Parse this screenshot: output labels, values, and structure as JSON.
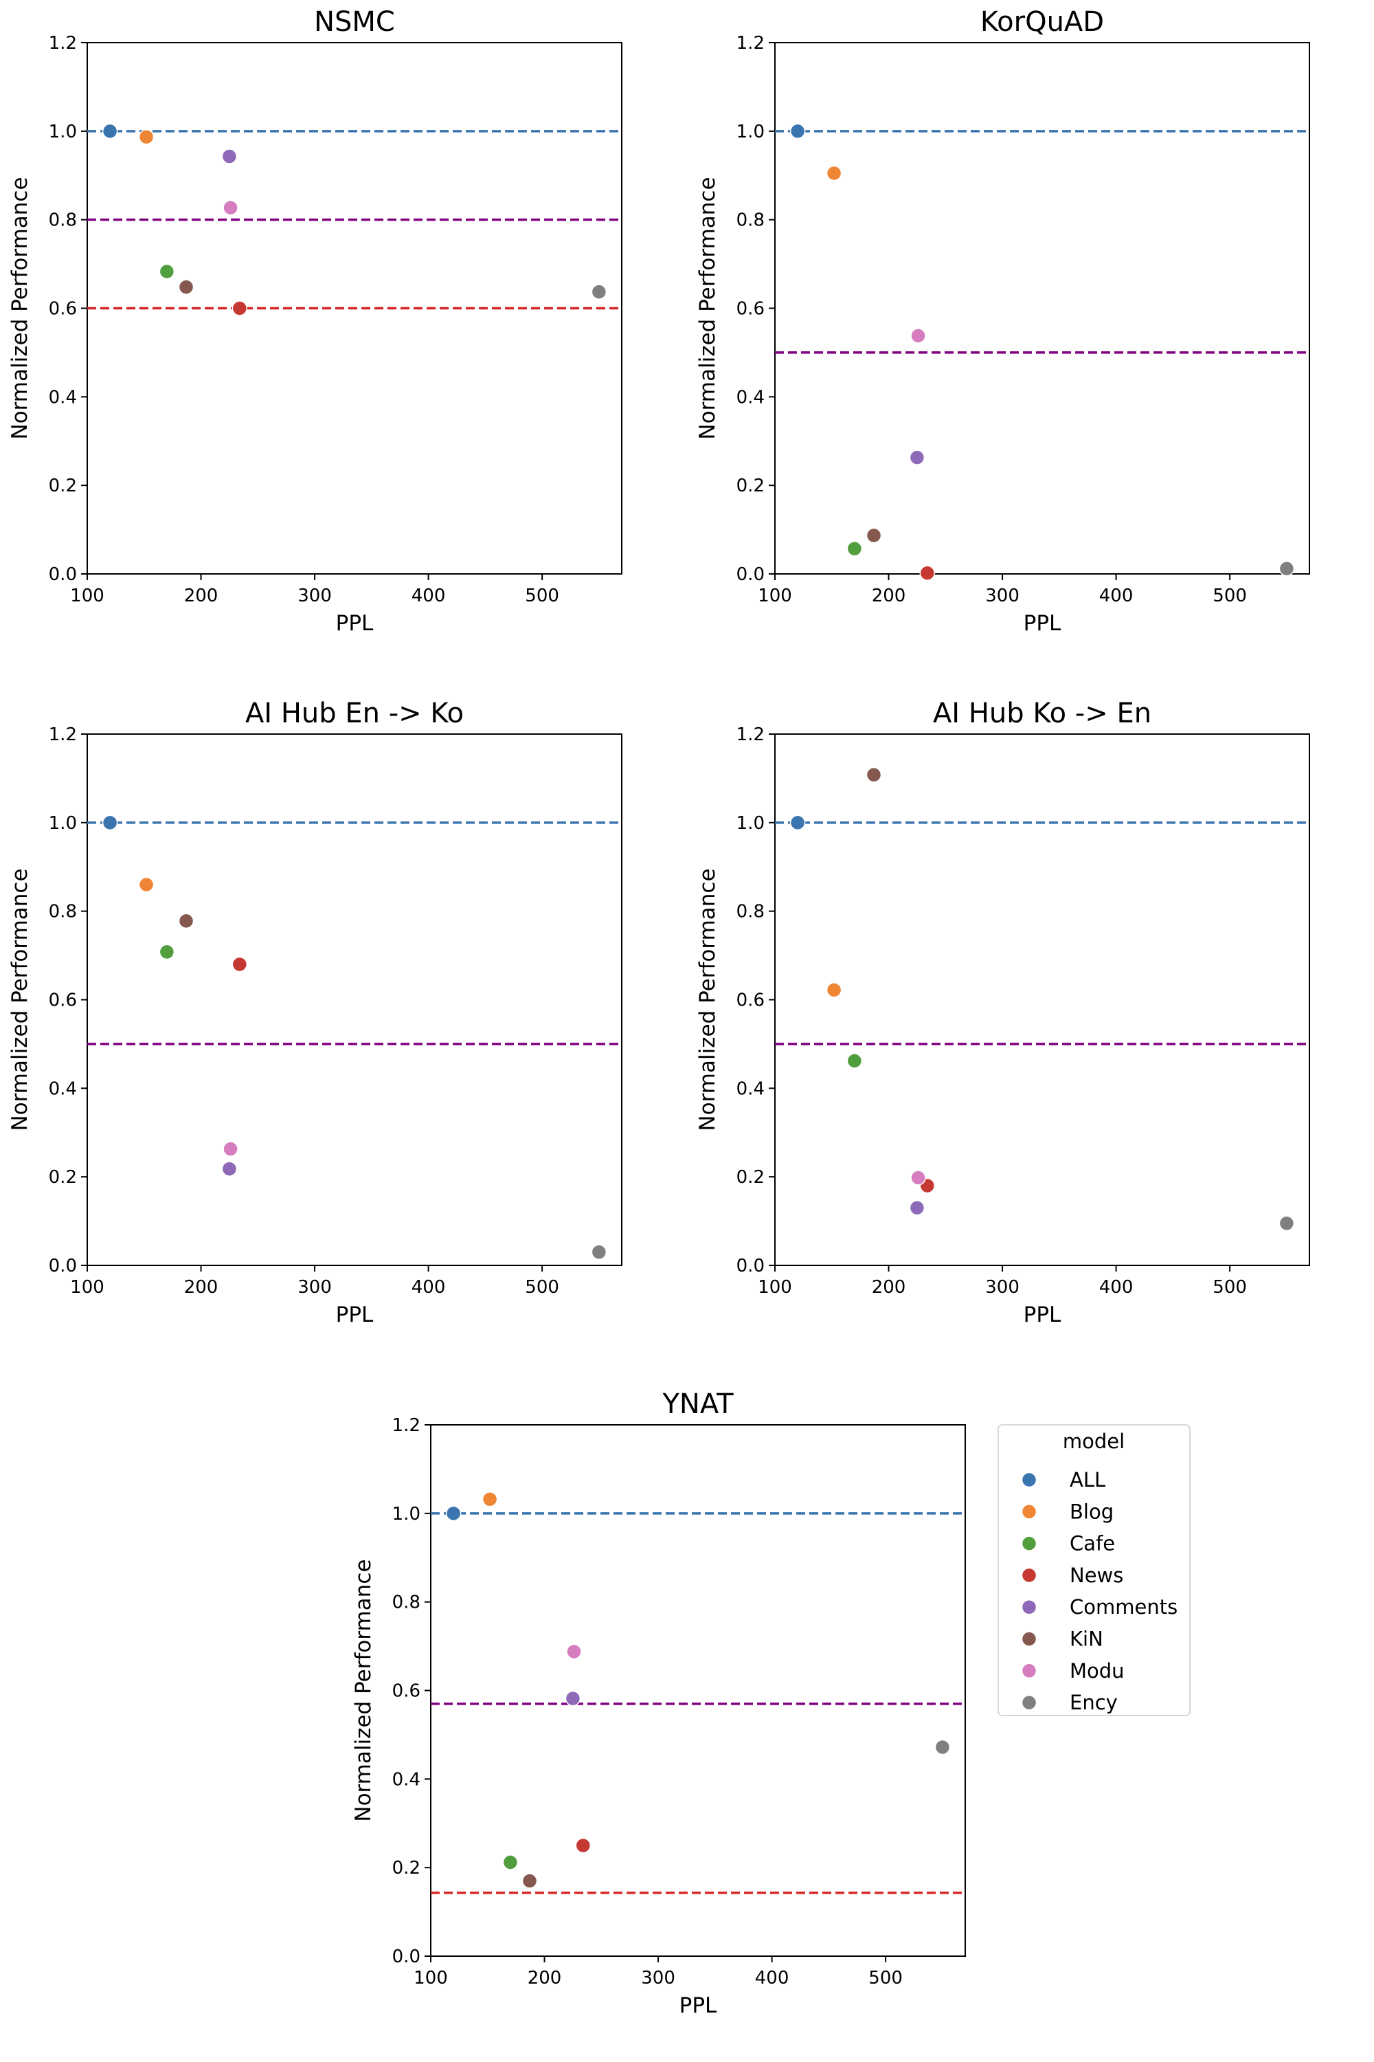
{
  "legend": {
    "title": "model",
    "entries": [
      {
        "name": "ALL",
        "color": "#3b75af"
      },
      {
        "name": "Blog",
        "color": "#ef8636"
      },
      {
        "name": "Cafe",
        "color": "#519e3e"
      },
      {
        "name": "News",
        "color": "#c53932"
      },
      {
        "name": "Comments",
        "color": "#8d69b8"
      },
      {
        "name": "KiN",
        "color": "#84584e"
      },
      {
        "name": "Modu",
        "color": "#d57dbe"
      },
      {
        "name": "Ency",
        "color": "#7f7f7f"
      }
    ]
  },
  "chart_data": [
    {
      "type": "scatter",
      "title": "NSMC",
      "xlabel": "PPL",
      "ylabel": "Normalized Performance",
      "xlim": [
        100,
        570
      ],
      "ylim": [
        0,
        1.2
      ],
      "xticks": [
        "100",
        "200",
        "300",
        "400",
        "500"
      ],
      "yticks": [
        "0.0",
        "0.2",
        "0.4",
        "0.6",
        "0.8",
        "1.0",
        "1.2"
      ],
      "reference_lines": [
        {
          "y": 1.0,
          "color": "#3b75af"
        },
        {
          "y": 0.8,
          "color": "#800080"
        },
        {
          "y": 0.6,
          "color": "#d62728"
        }
      ],
      "points": [
        {
          "model": "ALL",
          "x": 120,
          "y": 1.0
        },
        {
          "model": "Blog",
          "x": 152,
          "y": 0.987
        },
        {
          "model": "Cafe",
          "x": 170,
          "y": 0.683
        },
        {
          "model": "News",
          "x": 234,
          "y": 0.6
        },
        {
          "model": "Comments",
          "x": 225,
          "y": 0.943
        },
        {
          "model": "KiN",
          "x": 187,
          "y": 0.648
        },
        {
          "model": "Modu",
          "x": 226,
          "y": 0.827
        },
        {
          "model": "Ency",
          "x": 550,
          "y": 0.637
        }
      ]
    },
    {
      "type": "scatter",
      "title": "KorQuAD",
      "xlabel": "PPL",
      "ylabel": "Normalized Performance",
      "xlim": [
        100,
        570
      ],
      "ylim": [
        0,
        1.2
      ],
      "xticks": [
        "100",
        "200",
        "300",
        "400",
        "500"
      ],
      "yticks": [
        "0.0",
        "0.2",
        "0.4",
        "0.6",
        "0.8",
        "1.0",
        "1.2"
      ],
      "reference_lines": [
        {
          "y": 1.0,
          "color": "#3b75af"
        },
        {
          "y": 0.5,
          "color": "#800080"
        }
      ],
      "points": [
        {
          "model": "ALL",
          "x": 120,
          "y": 1.0
        },
        {
          "model": "Blog",
          "x": 152,
          "y": 0.905
        },
        {
          "model": "Cafe",
          "x": 170,
          "y": 0.057
        },
        {
          "model": "News",
          "x": 234,
          "y": 0.002
        },
        {
          "model": "Comments",
          "x": 225,
          "y": 0.263
        },
        {
          "model": "KiN",
          "x": 187,
          "y": 0.087
        },
        {
          "model": "Modu",
          "x": 226,
          "y": 0.538
        },
        {
          "model": "Ency",
          "x": 550,
          "y": 0.012
        }
      ]
    },
    {
      "type": "scatter",
      "title": "AI Hub En -> Ko",
      "xlabel": "PPL",
      "ylabel": "Normalized Performance",
      "xlim": [
        100,
        570
      ],
      "ylim": [
        0,
        1.2
      ],
      "xticks": [
        "100",
        "200",
        "300",
        "400",
        "500"
      ],
      "yticks": [
        "0.0",
        "0.2",
        "0.4",
        "0.6",
        "0.8",
        "1.0",
        "1.2"
      ],
      "reference_lines": [
        {
          "y": 1.0,
          "color": "#3b75af"
        },
        {
          "y": 0.5,
          "color": "#800080"
        }
      ],
      "points": [
        {
          "model": "ALL",
          "x": 120,
          "y": 1.0
        },
        {
          "model": "Blog",
          "x": 152,
          "y": 0.86
        },
        {
          "model": "Cafe",
          "x": 170,
          "y": 0.708
        },
        {
          "model": "News",
          "x": 234,
          "y": 0.68
        },
        {
          "model": "Comments",
          "x": 225,
          "y": 0.218
        },
        {
          "model": "KiN",
          "x": 187,
          "y": 0.778
        },
        {
          "model": "Modu",
          "x": 226,
          "y": 0.263
        },
        {
          "model": "Ency",
          "x": 550,
          "y": 0.03
        }
      ]
    },
    {
      "type": "scatter",
      "title": "AI Hub Ko -> En",
      "xlabel": "PPL",
      "ylabel": "Normalized Performance",
      "xlim": [
        100,
        570
      ],
      "ylim": [
        0,
        1.2
      ],
      "xticks": [
        "100",
        "200",
        "300",
        "400",
        "500"
      ],
      "yticks": [
        "0.0",
        "0.2",
        "0.4",
        "0.6",
        "0.8",
        "1.0",
        "1.2"
      ],
      "reference_lines": [
        {
          "y": 1.0,
          "color": "#3b75af"
        },
        {
          "y": 0.5,
          "color": "#800080"
        }
      ],
      "points": [
        {
          "model": "ALL",
          "x": 120,
          "y": 1.0
        },
        {
          "model": "Blog",
          "x": 152,
          "y": 0.622
        },
        {
          "model": "Cafe",
          "x": 170,
          "y": 0.462
        },
        {
          "model": "News",
          "x": 234,
          "y": 0.18
        },
        {
          "model": "Comments",
          "x": 225,
          "y": 0.13
        },
        {
          "model": "KiN",
          "x": 187,
          "y": 1.108
        },
        {
          "model": "Modu",
          "x": 226,
          "y": 0.198
        },
        {
          "model": "Ency",
          "x": 550,
          "y": 0.095
        }
      ]
    },
    {
      "type": "scatter",
      "title": "YNAT",
      "xlabel": "PPL",
      "ylabel": "Normalized Performance",
      "xlim": [
        100,
        570
      ],
      "ylim": [
        0,
        1.2
      ],
      "xticks": [
        "100",
        "200",
        "300",
        "400",
        "500"
      ],
      "yticks": [
        "0.0",
        "0.2",
        "0.4",
        "0.6",
        "0.8",
        "1.0",
        "1.2"
      ],
      "reference_lines": [
        {
          "y": 1.0,
          "color": "#3b75af"
        },
        {
          "y": 0.57,
          "color": "#800080"
        },
        {
          "y": 0.143,
          "color": "#d62728"
        }
      ],
      "points": [
        {
          "model": "ALL",
          "x": 120,
          "y": 1.0
        },
        {
          "model": "Blog",
          "x": 152,
          "y": 1.032
        },
        {
          "model": "Cafe",
          "x": 170,
          "y": 0.212
        },
        {
          "model": "News",
          "x": 234,
          "y": 0.25
        },
        {
          "model": "Comments",
          "x": 225,
          "y": 0.582
        },
        {
          "model": "KiN",
          "x": 187,
          "y": 0.17
        },
        {
          "model": "Modu",
          "x": 226,
          "y": 0.688
        },
        {
          "model": "Ency",
          "x": 550,
          "y": 0.472
        }
      ]
    }
  ]
}
